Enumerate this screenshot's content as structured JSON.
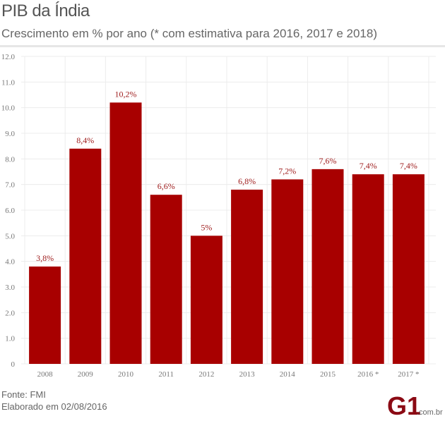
{
  "header": {
    "title": "PIB da Índia",
    "subtitle": "Crescimento em % por ano (* com estimativa para 2016, 2017 e 2018)"
  },
  "footer": {
    "source": "Fonte: FMI",
    "date": "Elaborado em 02/08/2016",
    "logo_text": "G1",
    "logo_suffix": ".com.br"
  },
  "colors": {
    "bar": "#a80000",
    "label": "#a02020",
    "grid": "#ececec",
    "axis_text": "#777777"
  },
  "chart_data": {
    "type": "bar",
    "title": "PIB da Índia",
    "subtitle": "Crescimento em % por ano (* com estimativa para 2016, 2017 e 2018)",
    "categories": [
      "2008",
      "2009",
      "2010",
      "2011",
      "2012",
      "2013",
      "2014",
      "2015",
      "2016 *",
      "2017 *"
    ],
    "values": [
      3.8,
      8.4,
      10.2,
      6.6,
      5.0,
      6.8,
      7.2,
      7.6,
      7.4,
      7.4
    ],
    "data_labels": [
      "3,8%",
      "8,4%",
      "10,2%",
      "6,6%",
      "5%",
      "6,8%",
      "7,2%",
      "7,6%",
      "7,4%",
      "7,4%"
    ],
    "yticks": [
      "0",
      "1.0",
      "2.0",
      "3.0",
      "4.0",
      "5.0",
      "6.0",
      "7.0",
      "8.0",
      "9.0",
      "10.0",
      "11.0",
      "12.0"
    ],
    "ylim": [
      0,
      12
    ],
    "xlabel": "",
    "ylabel": "",
    "grid": true,
    "legend": "none"
  }
}
